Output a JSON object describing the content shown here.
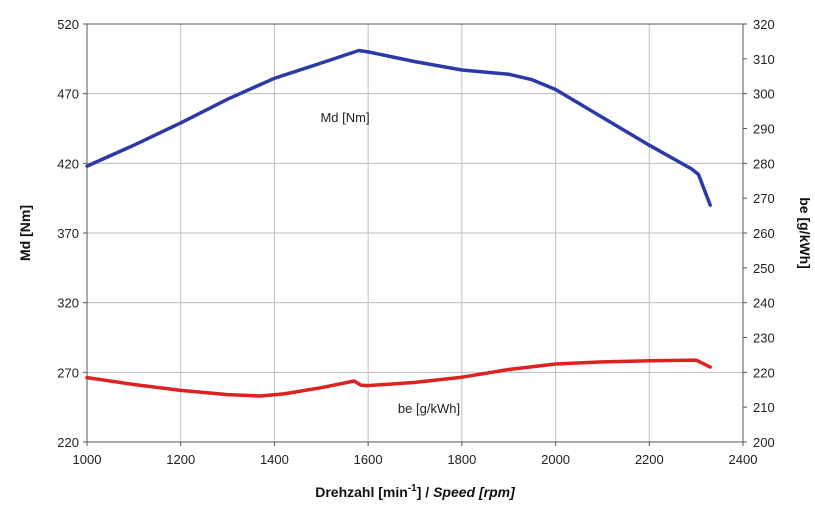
{
  "chart_data": {
    "type": "line",
    "title": "",
    "xlabel_main": "Drehzahl ",
    "xlabel_unit_prefix": " [min",
    "xlabel_unit_sup": "-1",
    "xlabel_unit_suffix": "] / ",
    "xlabel_italic": "Speed [rpm]",
    "ylabel_left": "Md [Nm]",
    "ylabel_right": "be [g/kWh]",
    "xlim": [
      1000,
      2400
    ],
    "xticks": [
      "1000",
      "1200",
      "1400",
      "1600",
      "1800",
      "2000",
      "2200",
      "2400"
    ],
    "ylim_left": [
      220,
      520
    ],
    "yticks_left": [
      "220",
      "270",
      "320",
      "370",
      "420",
      "470",
      "520"
    ],
    "ylim_right": [
      200,
      320
    ],
    "yticks_right": [
      "200",
      "210",
      "220",
      "230",
      "240",
      "250",
      "260",
      "270",
      "280",
      "290",
      "300",
      "310",
      "320"
    ],
    "grid": true,
    "series": [
      {
        "name": "Md [Nm]",
        "axis": "left",
        "color": "#2a3aa8",
        "x": [
          1000,
          1100,
          1200,
          1300,
          1400,
          1500,
          1580,
          1600,
          1700,
          1800,
          1900,
          1950,
          2000,
          2100,
          2200,
          2290,
          2305,
          2330
        ],
        "y": [
          418,
          433,
          449,
          466,
          481,
          492,
          501,
          500,
          493,
          487,
          484,
          480,
          473,
          453,
          433,
          416,
          412,
          390
        ]
      },
      {
        "name": "be [g/kWh]",
        "axis": "right",
        "color": "#dd2222",
        "x": [
          1000,
          1100,
          1200,
          1300,
          1370,
          1420,
          1500,
          1570,
          1585,
          1600,
          1700,
          1800,
          1900,
          2000,
          2100,
          2200,
          2300,
          2330
        ],
        "y": [
          218.5,
          216.5,
          214.8,
          213.6,
          213.2,
          213.8,
          215.6,
          217.5,
          216.3,
          216.2,
          217.1,
          218.6,
          220.8,
          222.4,
          223.0,
          223.3,
          223.5,
          221.5
        ]
      }
    ]
  }
}
